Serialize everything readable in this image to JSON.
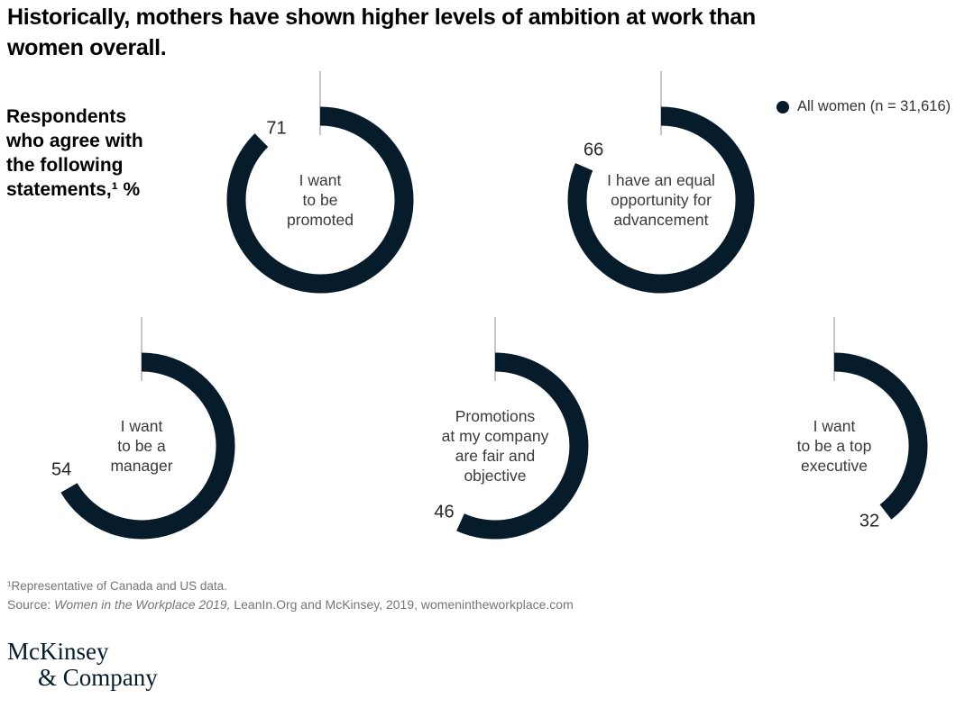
{
  "title": "Historically, mothers have shown higher levels of ambition at work than\nwomen overall.",
  "axis_label": "Respondents\nwho agree with\nthe following\nstatements,¹ %",
  "chart_data": {
    "type": "donut",
    "unit": "%",
    "title": "Respondents who agree with the following statements, %",
    "legend": [
      {
        "name": "All women (n = 31,616)",
        "color": "#071c2b"
      }
    ],
    "legend_position": "top-right",
    "scale_max": 81,
    "start_angle_deg": 0,
    "direction": "clockwise",
    "colors": {
      "arc": "#071c2b",
      "tick": "#a8a8a8"
    },
    "items": [
      {
        "label": "I want to be promoted",
        "label_lines": [
          "I want",
          "to be",
          "promoted"
        ],
        "value": 71
      },
      {
        "label": "I have an equal opportunity for advancement",
        "label_lines": [
          "I have an equal",
          "opportunity for",
          "advancement"
        ],
        "value": 66
      },
      {
        "label": "I want to be a manager",
        "label_lines": [
          "I want",
          "to be a",
          "manager"
        ],
        "value": 54
      },
      {
        "label": "Promotions at my company are fair and objective",
        "label_lines": [
          "Promotions",
          "at my company",
          "are fair and",
          "objective"
        ],
        "value": 46
      },
      {
        "label": "I want to be a top executive",
        "label_lines": [
          "I want",
          "to be a top",
          "executive"
        ],
        "value": 32
      }
    ]
  },
  "footnote": "¹Representative of Canada and US data.",
  "source": {
    "prefix": "Source: ",
    "italic": "Women in the Workplace 2019,",
    "rest": " LeanIn.Org and McKinsey, 2019, womenintheworkplace.com"
  },
  "logo": {
    "line1": "McKinsey",
    "line2": "& Company"
  }
}
